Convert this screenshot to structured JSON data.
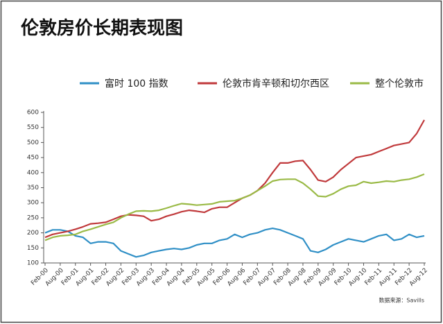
{
  "chart_data": {
    "type": "line",
    "title": "伦敦房价长期表现图",
    "note": "数据来源：Savills",
    "categories": [
      "Feb-00",
      null,
      "Aug-00",
      null,
      "Feb-01",
      null,
      "Aug-01",
      null,
      "Feb-02",
      null,
      "Aug-02",
      null,
      "Feb-03",
      null,
      "Aug-03",
      null,
      "Feb-04",
      null,
      "Aug-04",
      null,
      "Feb-05",
      null,
      "Aug-05",
      null,
      "Feb-06",
      null,
      "Aug-06",
      null,
      "Feb-07",
      null,
      "Aug-07",
      null,
      "Feb-08",
      null,
      "Aug-08",
      null,
      "Feb-09",
      null,
      "Aug-09",
      null,
      "Feb-10",
      null,
      "Aug-10",
      null,
      "Feb-11",
      null,
      "Aug-11",
      null,
      "Feb-12",
      null,
      "Aug-12"
    ],
    "series": [
      {
        "name": "富时 100 指数",
        "color": "#2f8fc6",
        "values": [
          200,
          210,
          210,
          205,
          190,
          185,
          165,
          170,
          170,
          165,
          140,
          130,
          120,
          125,
          135,
          140,
          145,
          148,
          145,
          150,
          160,
          165,
          165,
          175,
          180,
          195,
          185,
          195,
          200,
          210,
          215,
          210,
          200,
          190,
          180,
          140,
          135,
          145,
          160,
          170,
          180,
          175,
          170,
          180,
          190,
          195,
          175,
          180,
          195,
          185,
          190
        ]
      },
      {
        "name": "伦敦市肯辛顿和切尔西区",
        "color": "#c0393b",
        "values": [
          185,
          195,
          200,
          205,
          212,
          220,
          230,
          232,
          235,
          245,
          255,
          260,
          258,
          255,
          240,
          245,
          255,
          262,
          270,
          275,
          272,
          268,
          280,
          285,
          285,
          300,
          315,
          325,
          340,
          365,
          400,
          432,
          432,
          438,
          440,
          410,
          375,
          370,
          385,
          410,
          430,
          450,
          455,
          460,
          470,
          480,
          490,
          495,
          500,
          530,
          575
        ]
      },
      {
        "name": "整个伦敦市",
        "color": "#9aba46",
        "values": [
          175,
          185,
          190,
          192,
          195,
          205,
          212,
          220,
          228,
          235,
          250,
          262,
          272,
          273,
          272,
          275,
          282,
          290,
          297,
          295,
          292,
          294,
          296,
          303,
          305,
          307,
          315,
          325,
          340,
          355,
          372,
          377,
          378,
          378,
          365,
          345,
          322,
          320,
          330,
          345,
          355,
          358,
          370,
          365,
          368,
          372,
          370,
          375,
          378,
          385,
          395
        ]
      }
    ],
    "ylim": [
      100,
      600
    ],
    "yticks": [
      100,
      150,
      200,
      250,
      300,
      350,
      400,
      450,
      500,
      550,
      600
    ]
  }
}
